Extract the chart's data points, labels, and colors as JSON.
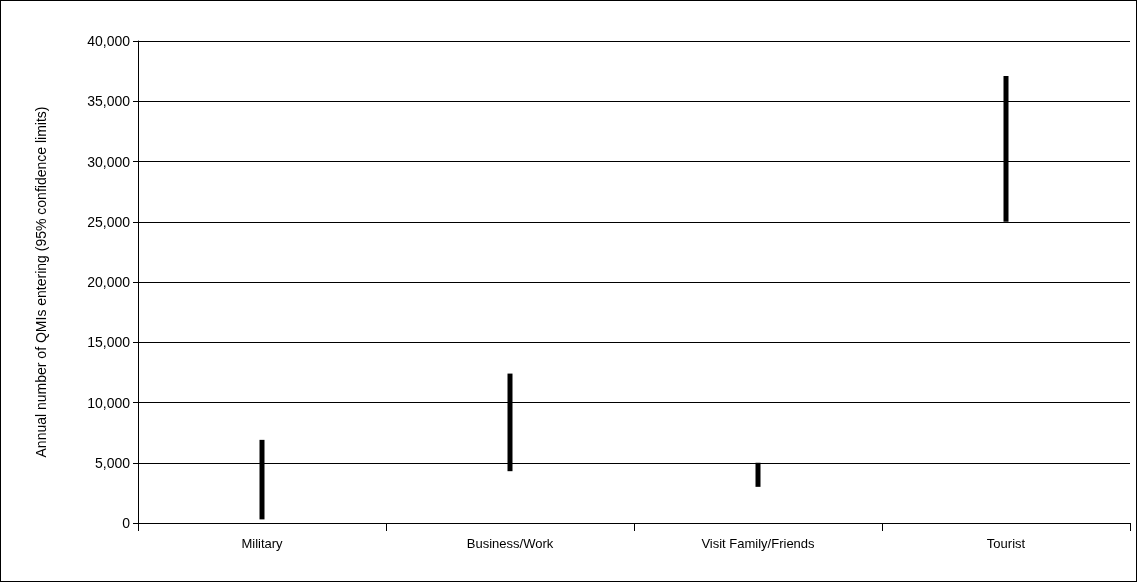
{
  "chart_data": {
    "type": "bar",
    "ylabel": "Annual number of QMIs entering (95% confidence limits)",
    "categories": [
      "Military",
      "Business/Work",
      "Visit Family/Friends",
      "Tourist"
    ],
    "base": [
      300,
      4300,
      3000,
      25000
    ],
    "values": [
      6600,
      8100,
      2000,
      12100
    ],
    "color": "#000000",
    "ylim": [
      0,
      40000
    ],
    "yticks": [
      0,
      {
        "value": 5000,
        "label": "5,000"
      },
      {
        "value": 10000,
        "label": "10,000"
      },
      {
        "value": 15000,
        "label": "15,000"
      },
      {
        "value": 20000,
        "label": "20,000"
      },
      {
        "value": 25000,
        "label": "25,000"
      },
      {
        "value": 30000,
        "label": "30,000"
      },
      {
        "value": 35000,
        "label": "35,000"
      },
      {
        "value": 40000,
        "label": "40,000"
      }
    ],
    "grid": "y"
  }
}
